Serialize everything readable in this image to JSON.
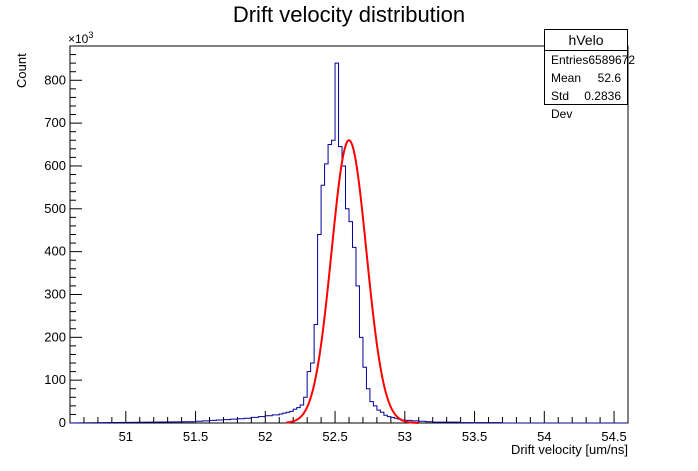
{
  "title": "Drift velocity distribution",
  "stats": {
    "name": "hVelo",
    "rows": [
      {
        "label": "Entries",
        "value": "6589672"
      },
      {
        "label": "Mean",
        "value": "52.6"
      },
      {
        "label": "Std Dev",
        "value": "0.2836"
      }
    ]
  },
  "axis_multiplier": {
    "base": "×10",
    "exponent": "3"
  },
  "colors": {
    "histogram": "#000099",
    "fit": "#ff0000"
  },
  "chart_data": {
    "type": "bar",
    "xlabel": "Drift velocity [um/ns]",
    "ylabel": "Count",
    "xlim": [
      50.6,
      54.6
    ],
    "ylim": [
      0,
      880
    ],
    "y_unit_multiplier": 1000,
    "x_ticks": [
      51,
      51.5,
      52,
      52.5,
      53,
      53.5,
      54,
      54.5
    ],
    "x_tick_labels": [
      "51",
      "51.5",
      "52",
      "52.5",
      "53",
      "53.5",
      "54",
      "54.5"
    ],
    "y_ticks": [
      0,
      100,
      200,
      300,
      400,
      500,
      600,
      700,
      800
    ],
    "y_tick_labels": [
      "0",
      "100",
      "200",
      "300",
      "400",
      "500",
      "600",
      "700",
      "800"
    ],
    "grid": false,
    "series": [
      {
        "style": "step",
        "bin_width": 0.025,
        "x": [
          51.45,
          51.5,
          51.55,
          51.6,
          51.65,
          51.7,
          51.75,
          51.8,
          51.85,
          51.9,
          51.95,
          52.0,
          52.05,
          52.1,
          52.125,
          52.15,
          52.175,
          52.2,
          52.225,
          52.25,
          52.275,
          52.3,
          52.325,
          52.35,
          52.375,
          52.4,
          52.425,
          52.45,
          52.475,
          52.5,
          52.525,
          52.55,
          52.575,
          52.6,
          52.625,
          52.65,
          52.675,
          52.7,
          52.725,
          52.75,
          52.775,
          52.8,
          52.825,
          52.85,
          52.875,
          52.9,
          52.925,
          52.95,
          52.975,
          53.0,
          53.05,
          53.1,
          53.15,
          53.2,
          53.3,
          53.4,
          53.5,
          53.6,
          53.7
        ],
        "values": [
          3,
          4,
          5,
          6,
          7,
          8,
          9,
          10,
          11,
          13,
          15,
          17,
          19,
          21,
          23,
          25,
          27,
          32,
          36,
          42,
          60,
          120,
          140,
          230,
          440,
          555,
          605,
          650,
          660,
          840,
          645,
          600,
          500,
          470,
          410,
          320,
          200,
          130,
          80,
          50,
          40,
          30,
          25,
          18,
          15,
          13,
          11,
          9,
          7,
          6,
          5,
          4,
          3,
          2,
          2,
          1,
          1,
          1,
          0
        ]
      },
      {
        "style": "fit-curve",
        "function": "gaussian",
        "amplitude": 660,
        "mean": 52.6,
        "sigma": 0.125,
        "range": [
          52.15,
          53.1
        ]
      }
    ]
  }
}
